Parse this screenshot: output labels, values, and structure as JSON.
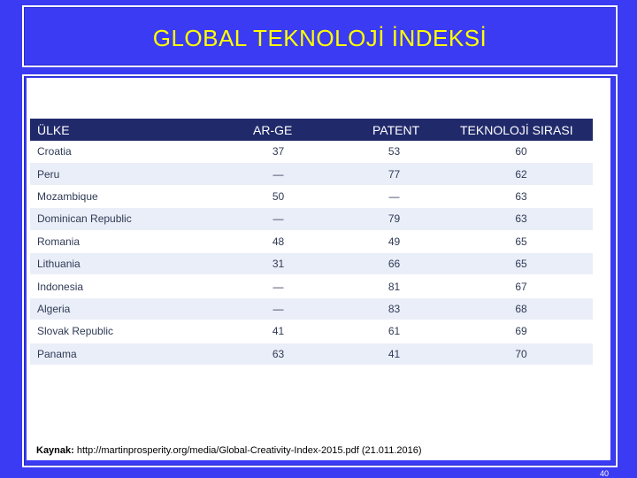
{
  "title": "GLOBAL TEKNOLOJİ İNDEKSİ",
  "table": {
    "headers": [
      "ÜLKE",
      "AR-GE",
      "PATENT",
      "TEKNOLOJİ SIRASI"
    ],
    "rows": [
      [
        "Croatia",
        "37",
        "53",
        "60"
      ],
      [
        "Peru",
        "—",
        "77",
        "62"
      ],
      [
        "Mozambique",
        "50",
        "—",
        "63"
      ],
      [
        "Dominican Republic",
        "—",
        "79",
        "63"
      ],
      [
        "Romania",
        "48",
        "49",
        "65"
      ],
      [
        "Lithuania",
        "31",
        "66",
        "65"
      ],
      [
        "Indonesia",
        "—",
        "81",
        "67"
      ],
      [
        "Algeria",
        "—",
        "83",
        "68"
      ],
      [
        "Slovak Republic",
        "41",
        "61",
        "69"
      ],
      [
        "Panama",
        "63",
        "41",
        "70"
      ]
    ]
  },
  "source": {
    "label": "Kaynak:",
    "text": " http://martinprosperity.org/media/Global-Creativity-Index-2015.pdf (21.011.2016)"
  },
  "page_number": "40",
  "colors": {
    "background": "#3b3bf3",
    "title": "#ffff00",
    "table_header": "#202a6b",
    "row_alt": "#eaeef8"
  }
}
